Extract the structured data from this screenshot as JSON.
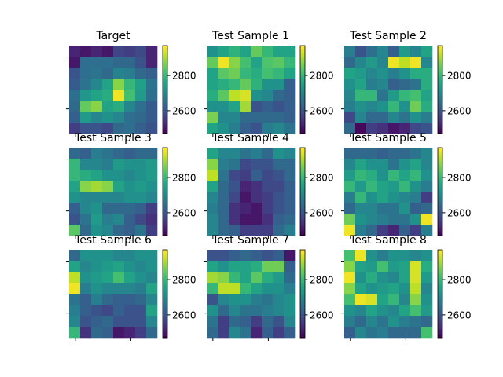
{
  "figure": {
    "colormap": "viridis",
    "shared_tick_labels": [
      "2600",
      "2800"
    ]
  },
  "chart_data": [
    {
      "type": "heatmap",
      "title": "Target",
      "colorbar_range": [
        2470,
        2970
      ],
      "colorbar_ticks": [
        2600,
        2800
      ],
      "values": [
        [
          2520,
          2500,
          2520,
          2500,
          2570,
          2560,
          2580,
          2520
        ],
        [
          2500,
          2650,
          2650,
          2650,
          2640,
          2640,
          2600,
          2520
        ],
        [
          2600,
          2650,
          2660,
          2640,
          2690,
          2680,
          2640,
          2620
        ],
        [
          2610,
          2660,
          2700,
          2760,
          2880,
          2800,
          2750,
          2660
        ],
        [
          2650,
          2730,
          2760,
          2780,
          2960,
          2820,
          2740,
          2650
        ],
        [
          2640,
          2850,
          2880,
          2760,
          2780,
          2700,
          2650,
          2610
        ],
        [
          2620,
          2740,
          2700,
          2720,
          2700,
          2650,
          2640,
          2610
        ],
        [
          2560,
          2600,
          2600,
          2580,
          2640,
          2650,
          2620,
          2600
        ]
      ]
    },
    {
      "type": "heatmap",
      "title": "Test Sample 1",
      "colorbar_range": [
        2470,
        2970
      ],
      "colorbar_ticks": [
        2600,
        2800
      ],
      "values": [
        [
          2720,
          2760,
          2790,
          2760,
          2850,
          2800,
          2760,
          2760
        ],
        [
          2850,
          2960,
          2880,
          2820,
          2760,
          2830,
          2840,
          2800
        ],
        [
          2760,
          2840,
          2860,
          2800,
          2780,
          2820,
          2800,
          2760
        ],
        [
          2760,
          2780,
          2800,
          2850,
          2790,
          2720,
          2720,
          2620
        ],
        [
          2780,
          2840,
          2920,
          2940,
          2720,
          2700,
          2640,
          2620
        ],
        [
          2720,
          2720,
          2760,
          2900,
          2600,
          2620,
          2600,
          2620
        ],
        [
          2870,
          2700,
          2700,
          2640,
          2640,
          2640,
          2640,
          2620
        ],
        [
          2760,
          2720,
          2680,
          2620,
          2600,
          2680,
          2700,
          2660
        ]
      ]
    },
    {
      "type": "heatmap",
      "title": "Test Sample 2",
      "colorbar_range": [
        2470,
        2970
      ],
      "colorbar_ticks": [
        2600,
        2800
      ],
      "values": [
        [
          2680,
          2600,
          2650,
          2700,
          2620,
          2740,
          2700,
          2760
        ],
        [
          2640,
          2700,
          2740,
          2700,
          2960,
          2920,
          2960,
          2700
        ],
        [
          2760,
          2740,
          2700,
          2720,
          2680,
          2720,
          2780,
          2780
        ],
        [
          2720,
          2760,
          2680,
          2700,
          2620,
          2640,
          2660,
          2780
        ],
        [
          2700,
          2800,
          2800,
          2660,
          2740,
          2800,
          2820,
          2760
        ],
        [
          2680,
          2720,
          2700,
          2720,
          2800,
          2720,
          2860,
          2780
        ],
        [
          2580,
          2700,
          2640,
          2640,
          2700,
          2660,
          2720,
          2680
        ],
        [
          2640,
          2480,
          2560,
          2540,
          2500,
          2520,
          2580,
          2600
        ]
      ]
    },
    {
      "type": "heatmap",
      "title": "Test Sample 3",
      "colorbar_range": [
        2470,
        2970
      ],
      "colorbar_ticks": [
        2600,
        2800
      ],
      "values": [
        [
          2640,
          2620,
          2680,
          2660,
          2640,
          2620,
          2640,
          2640
        ],
        [
          2800,
          2700,
          2700,
          2680,
          2740,
          2720,
          2720,
          2740
        ],
        [
          2800,
          2780,
          2760,
          2720,
          2720,
          2700,
          2720,
          2740
        ],
        [
          2760,
          2880,
          2900,
          2880,
          2760,
          2720,
          2740,
          2720
        ],
        [
          2720,
          2700,
          2700,
          2700,
          2700,
          2720,
          2720,
          2700
        ],
        [
          2620,
          2700,
          2720,
          2640,
          2640,
          2640,
          2620,
          2560
        ],
        [
          2600,
          2660,
          2740,
          2680,
          2700,
          2620,
          2580,
          2540
        ],
        [
          2840,
          2640,
          2720,
          2700,
          2640,
          2620,
          2660,
          2560
        ]
      ]
    },
    {
      "type": "heatmap",
      "title": "Test Sample 4",
      "colorbar_range": [
        2470,
        2970
      ],
      "colorbar_ticks": [
        2600,
        2800
      ],
      "values": [
        [
          2760,
          2700,
          2700,
          2660,
          2680,
          2640,
          2720,
          2700
        ],
        [
          2880,
          2680,
          2660,
          2580,
          2600,
          2600,
          2640,
          2640
        ],
        [
          2920,
          2660,
          2580,
          2560,
          2620,
          2580,
          2600,
          2640
        ],
        [
          2760,
          2640,
          2600,
          2520,
          2540,
          2580,
          2580,
          2620
        ],
        [
          2700,
          2640,
          2580,
          2500,
          2540,
          2560,
          2600,
          2620
        ],
        [
          2680,
          2640,
          2540,
          2520,
          2500,
          2560,
          2600,
          2620
        ],
        [
          2700,
          2640,
          2540,
          2500,
          2500,
          2540,
          2620,
          2640
        ],
        [
          2700,
          2640,
          2620,
          2560,
          2560,
          2560,
          2640,
          2680
        ]
      ]
    },
    {
      "type": "heatmap",
      "title": "Test Sample 5",
      "colorbar_range": [
        2470,
        2970
      ],
      "colorbar_ticks": [
        2600,
        2800
      ],
      "values": [
        [
          2640,
          2640,
          2640,
          2620,
          2640,
          2640,
          2660,
          2700
        ],
        [
          2700,
          2760,
          2720,
          2720,
          2660,
          2720,
          2760,
          2700
        ],
        [
          2740,
          2800,
          2780,
          2720,
          2800,
          2760,
          2800,
          2720
        ],
        [
          2800,
          2740,
          2800,
          2760,
          2740,
          2800,
          2720,
          2680
        ],
        [
          2680,
          2800,
          2720,
          2760,
          2720,
          2700,
          2680,
          2560
        ],
        [
          2640,
          2700,
          2700,
          2660,
          2660,
          2720,
          2620,
          2640
        ],
        [
          2860,
          2720,
          2700,
          2680,
          2660,
          2660,
          2720,
          2960
        ],
        [
          2960,
          2680,
          2640,
          2560,
          2520,
          2620,
          2560,
          2680
        ]
      ]
    },
    {
      "type": "heatmap",
      "title": "Test Sample 6",
      "colorbar_range": [
        2470,
        2970
      ],
      "colorbar_ticks": [
        2600,
        2800
      ],
      "values": [
        [
          2640,
          2720,
          2720,
          2720,
          2700,
          2700,
          2720,
          2720
        ],
        [
          2760,
          2700,
          2720,
          2740,
          2760,
          2720,
          2700,
          2720
        ],
        [
          2920,
          2720,
          2740,
          2760,
          2820,
          2760,
          2720,
          2700
        ],
        [
          2960,
          2680,
          2720,
          2700,
          2700,
          2700,
          2680,
          2760
        ],
        [
          2660,
          2620,
          2680,
          2640,
          2620,
          2620,
          2640,
          2700
        ],
        [
          2680,
          2620,
          2600,
          2580,
          2620,
          2600,
          2600,
          2760
        ],
        [
          2700,
          2600,
          2620,
          2640,
          2600,
          2600,
          2600,
          2700
        ],
        [
          2800,
          2540,
          2640,
          2620,
          2500,
          2520,
          2560,
          2640
        ]
      ]
    },
    {
      "type": "heatmap",
      "title": "Test Sample 7",
      "colorbar_range": [
        2470,
        2970
      ],
      "colorbar_ticks": [
        2600,
        2800
      ],
      "values": [
        [
          2600,
          2600,
          2620,
          2640,
          2620,
          2600,
          2620,
          2500
        ],
        [
          2760,
          2720,
          2760,
          2760,
          2780,
          2860,
          2860,
          2620
        ],
        [
          2900,
          2880,
          2800,
          2760,
          2840,
          2780,
          2740,
          2640
        ],
        [
          2800,
          2920,
          2920,
          2800,
          2760,
          2720,
          2720,
          2680
        ],
        [
          2600,
          2700,
          2720,
          2720,
          2680,
          2660,
          2700,
          2720
        ],
        [
          2720,
          2640,
          2700,
          2660,
          2660,
          2680,
          2700,
          2720
        ],
        [
          2660,
          2560,
          2640,
          2620,
          2560,
          2640,
          2600,
          2700
        ],
        [
          2640,
          2560,
          2700,
          2660,
          2520,
          2620,
          2560,
          2620
        ]
      ]
    },
    {
      "type": "heatmap",
      "title": "Test Sample 8",
      "colorbar_range": [
        2470,
        2970
      ],
      "colorbar_ticks": [
        2600,
        2800
      ],
      "values": [
        [
          2820,
          2960,
          2720,
          2680,
          2720,
          2720,
          2700,
          2720
        ],
        [
          2880,
          2760,
          2740,
          2820,
          2740,
          2760,
          2940,
          2780
        ],
        [
          2960,
          2720,
          2780,
          2720,
          2700,
          2760,
          2940,
          2740
        ],
        [
          2880,
          2760,
          2720,
          2740,
          2760,
          2720,
          2920,
          2700
        ],
        [
          2820,
          2960,
          2940,
          2760,
          2800,
          2700,
          2880,
          2720
        ],
        [
          2720,
          2700,
          2760,
          2720,
          2700,
          2760,
          2820,
          2740
        ],
        [
          2680,
          2640,
          2700,
          2660,
          2720,
          2680,
          2660,
          2640
        ],
        [
          2620,
          2700,
          2660,
          2680,
          2640,
          2640,
          2640,
          2820
        ]
      ]
    }
  ]
}
